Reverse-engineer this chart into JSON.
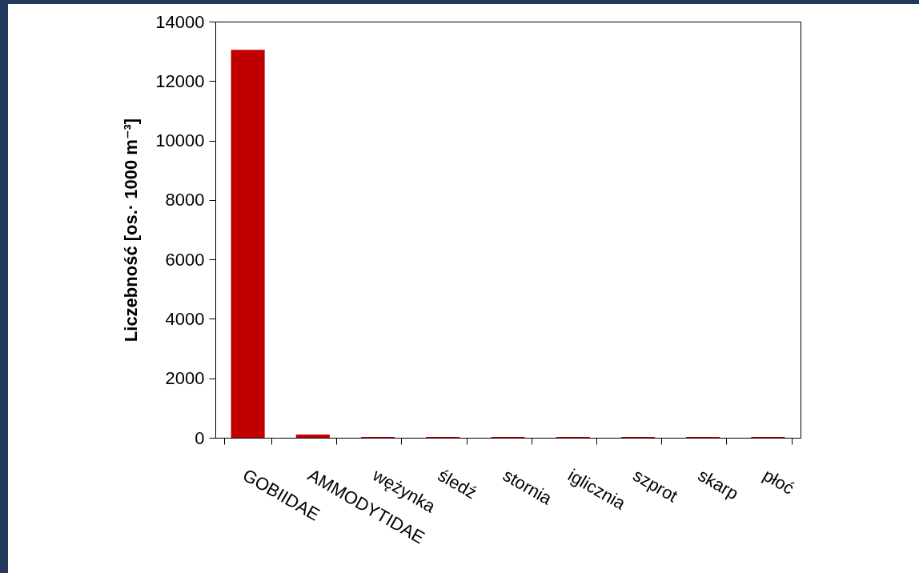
{
  "chart_data": {
    "type": "bar",
    "ylabel": "Liczebność [os.· 1000 m⁻³]",
    "categories": [
      "GOBIIDAE",
      "AMMODYTIDAE",
      "wężynka",
      "śledź",
      "stornia",
      "iglicznia",
      "szprot",
      "skarp",
      "płoć"
    ],
    "values": [
      13050,
      110,
      30,
      30,
      30,
      30,
      30,
      30,
      30
    ],
    "color": "#c00000",
    "ylim": [
      0,
      14000
    ],
    "yticks": [
      0,
      2000,
      4000,
      6000,
      8000,
      10000,
      12000,
      14000
    ],
    "grid": false
  }
}
